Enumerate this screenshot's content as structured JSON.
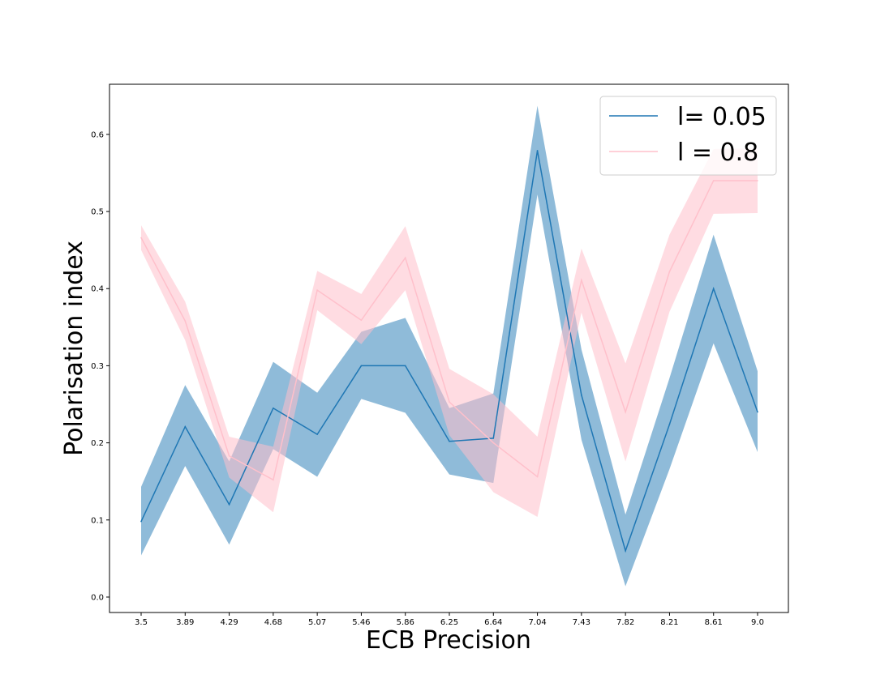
{
  "chart_data": {
    "type": "line",
    "title": "",
    "xlabel": "ECB Precision",
    "ylabel": "Polarisation index",
    "categories": [
      "3.5",
      "3.89",
      "4.29",
      "4.68",
      "5.07",
      "5.46",
      "5.86",
      "6.25",
      "6.64",
      "7.04",
      "7.43",
      "7.82",
      "8.21",
      "8.61",
      "9.0"
    ],
    "y_ticks": [
      "0.0",
      "0.1",
      "0.2",
      "0.3",
      "0.4",
      "0.5",
      "0.6"
    ],
    "ylim": [
      -0.02,
      0.665
    ],
    "grid": false,
    "legend_position": "upper-right",
    "series": [
      {
        "name": "l= 0.05",
        "color": "#1f77b4",
        "band_color": "#1f77b4",
        "band_opacity": 0.5,
        "values": [
          0.098,
          0.221,
          0.12,
          0.245,
          0.211,
          0.3,
          0.3,
          0.202,
          0.206,
          0.579,
          0.262,
          0.06,
          0.224,
          0.4,
          0.24
        ],
        "lower": [
          0.054,
          0.17,
          0.068,
          0.192,
          0.156,
          0.257,
          0.239,
          0.159,
          0.148,
          0.522,
          0.204,
          0.014,
          0.166,
          0.329,
          0.188
        ],
        "upper": [
          0.143,
          0.275,
          0.176,
          0.305,
          0.265,
          0.344,
          0.362,
          0.245,
          0.264,
          0.637,
          0.321,
          0.107,
          0.284,
          0.47,
          0.293
        ]
      },
      {
        "name": "l = 0.8",
        "color": "#ffc0cb",
        "band_color": "#ffc0cb",
        "band_opacity": 0.55,
        "values": [
          0.466,
          0.358,
          0.183,
          0.152,
          0.398,
          0.359,
          0.44,
          0.253,
          0.2,
          0.156,
          0.411,
          0.24,
          0.422,
          0.54,
          0.54
        ],
        "lower": [
          0.45,
          0.333,
          0.155,
          0.11,
          0.372,
          0.328,
          0.398,
          0.21,
          0.136,
          0.104,
          0.369,
          0.176,
          0.37,
          0.497,
          0.498
        ],
        "upper": [
          0.482,
          0.383,
          0.208,
          0.195,
          0.423,
          0.393,
          0.481,
          0.296,
          0.263,
          0.208,
          0.452,
          0.303,
          0.47,
          0.581,
          0.582
        ]
      }
    ]
  }
}
